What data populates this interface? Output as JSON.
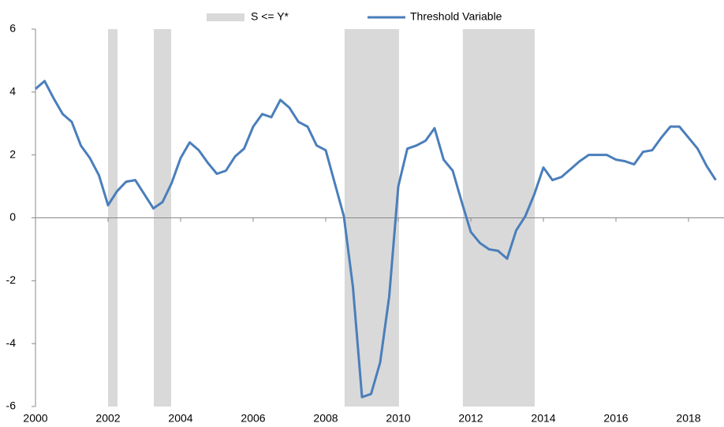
{
  "chart_data": {
    "type": "line",
    "x": [
      2000,
      2000.25,
      2000.5,
      2000.75,
      2001,
      2001.25,
      2001.5,
      2001.75,
      2002,
      2002.25,
      2002.5,
      2002.75,
      2003,
      2003.25,
      2003.5,
      2003.75,
      2004,
      2004.25,
      2004.5,
      2004.75,
      2005,
      2005.25,
      2005.5,
      2005.75,
      2006,
      2006.25,
      2006.5,
      2006.75,
      2007,
      2007.25,
      2007.5,
      2007.75,
      2008,
      2008.25,
      2008.5,
      2008.75,
      2009,
      2009.25,
      2009.5,
      2009.75,
      2010,
      2010.25,
      2010.5,
      2010.75,
      2011,
      2011.25,
      2011.5,
      2011.75,
      2012,
      2012.25,
      2012.5,
      2012.75,
      2013,
      2013.25,
      2013.5,
      2013.75,
      2014,
      2014.25,
      2014.5,
      2014.75,
      2015,
      2015.25,
      2015.5,
      2015.75,
      2016,
      2016.25,
      2016.5,
      2016.75,
      2017,
      2017.25,
      2017.5,
      2017.75,
      2018,
      2018.25,
      2018.5,
      2018.75
    ],
    "series": [
      {
        "name": "Threshold Variable",
        "color": "#4a7ebb",
        "values": [
          4.1,
          4.35,
          3.8,
          3.3,
          3.05,
          2.3,
          1.9,
          1.35,
          0.4,
          0.85,
          1.15,
          1.2,
          0.75,
          0.3,
          0.5,
          1.1,
          1.9,
          2.4,
          2.15,
          1.75,
          1.4,
          1.5,
          1.95,
          2.2,
          2.9,
          3.3,
          3.2,
          3.75,
          3.5,
          3.05,
          2.9,
          2.3,
          2.15,
          1.1,
          0.05,
          -2.2,
          -5.7,
          -5.6,
          -4.6,
          -2.5,
          1.0,
          2.2,
          2.3,
          2.45,
          2.85,
          1.85,
          1.5,
          0.5,
          -0.45,
          -0.8,
          -1.0,
          -1.05,
          -1.3,
          -0.4,
          0.05,
          0.75,
          1.6,
          1.2,
          1.3,
          1.55,
          1.8,
          2.0,
          2.0,
          2.0,
          1.85,
          1.8,
          1.7,
          2.1,
          2.15,
          2.55,
          2.9,
          2.9,
          2.55,
          2.2,
          1.65,
          1.2
        ]
      }
    ],
    "shading": {
      "name": "S <= Y*",
      "color": "#d9d9d9",
      "ranges": [
        [
          2002.0,
          2002.26
        ],
        [
          2003.26,
          2003.74
        ],
        [
          2008.52,
          2010.02
        ],
        [
          2011.78,
          2013.76
        ]
      ]
    },
    "xlim": [
      2000,
      2019
    ],
    "xticks": [
      2000,
      2002,
      2004,
      2006,
      2008,
      2010,
      2012,
      2014,
      2016,
      2018
    ],
    "ylim": [
      -6,
      6
    ],
    "yticks": [
      -6,
      -4,
      -2,
      0,
      2,
      4,
      6
    ]
  }
}
